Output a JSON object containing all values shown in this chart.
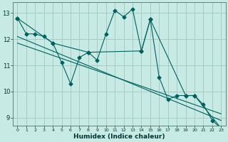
{
  "title": "",
  "xlabel": "Humidex (Indice chaleur)",
  "bg_color": "#c8eae4",
  "grid_color": "#a0c8c0",
  "line_color": "#006060",
  "xlim": [
    -0.5,
    23.5
  ],
  "ylim": [
    8.7,
    13.4
  ],
  "yticks": [
    9,
    10,
    11,
    12,
    13
  ],
  "xticks": [
    0,
    1,
    2,
    3,
    4,
    5,
    6,
    7,
    8,
    9,
    10,
    11,
    12,
    13,
    14,
    15,
    16,
    17,
    18,
    19,
    20,
    21,
    22,
    23
  ],
  "series_main": {
    "x": [
      0,
      1,
      2,
      3,
      4,
      5,
      6,
      7,
      8,
      9,
      10,
      11,
      12,
      13,
      14,
      15,
      16,
      17,
      18,
      19,
      20,
      21,
      22,
      23
    ],
    "y": [
      12.8,
      12.2,
      12.2,
      12.1,
      11.85,
      11.1,
      10.3,
      11.3,
      11.5,
      11.2,
      12.2,
      13.1,
      12.85,
      13.15,
      11.55,
      12.75,
      10.55,
      9.7,
      9.85,
      9.85,
      9.85,
      9.5,
      8.9,
      8.6
    ]
  },
  "series_partial": {
    "x": [
      0,
      4,
      8,
      14,
      15,
      19,
      20,
      23
    ],
    "y": [
      12.8,
      11.85,
      11.5,
      11.55,
      12.75,
      9.85,
      9.85,
      8.6
    ]
  },
  "trend1": {
    "x": [
      0,
      23
    ],
    "y": [
      12.1,
      8.9
    ]
  },
  "trend2": {
    "x": [
      0,
      23
    ],
    "y": [
      11.85,
      9.15
    ]
  }
}
